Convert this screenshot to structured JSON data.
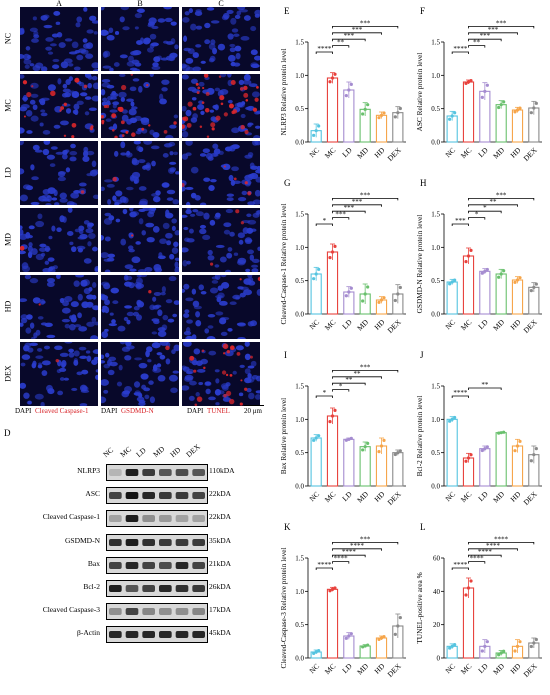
{
  "micro": {
    "col_labels": [
      "A",
      "B",
      "C"
    ],
    "row_labels": [
      "NC",
      "MC",
      "LD",
      "MD",
      "HD",
      "DEX"
    ],
    "red_density": [
      [
        0,
        0,
        0
      ],
      [
        0.25,
        0.35,
        0.6
      ],
      [
        0.02,
        0.02,
        0.08
      ],
      [
        0.01,
        0.02,
        0.05
      ],
      [
        0.01,
        0.01,
        0.03
      ],
      [
        0.02,
        0.02,
        0.35
      ]
    ],
    "legend": [
      {
        "dapi": "DAPI",
        "marker": "Cleaved Caspase-1"
      },
      {
        "dapi": "DAPI",
        "marker": "GSDMD-N"
      },
      {
        "dapi": "DAPI",
        "marker": "TUNEL"
      }
    ],
    "scale_bar": "20 μm",
    "colors": {
      "dapi": "#2a3ccc",
      "marker": "#d9262b",
      "background": "#08082a"
    }
  },
  "western": {
    "panel": "D",
    "lanes": [
      "NC",
      "MC",
      "LD",
      "MD",
      "HD",
      "DEX"
    ],
    "proteins": [
      {
        "name": "NLRP3",
        "kda": "110kDA",
        "intensity": [
          0.1,
          0.9,
          0.75,
          0.6,
          0.65,
          0.6
        ]
      },
      {
        "name": "ASC",
        "kda": "22kDA",
        "intensity": [
          0.7,
          0.95,
          0.85,
          0.75,
          0.75,
          0.7
        ]
      },
      {
        "name": "Cleaved Caspase-1",
        "kda": "22kDA",
        "intensity": [
          0.2,
          0.9,
          0.3,
          0.25,
          0.2,
          0.2
        ]
      },
      {
        "name": "GSDMD-N",
        "kda": "35kDA",
        "intensity": [
          0.8,
          0.9,
          0.8,
          0.75,
          0.75,
          0.75
        ]
      },
      {
        "name": "Bax",
        "kda": "21kDA",
        "intensity": [
          0.7,
          0.85,
          0.7,
          0.65,
          0.85,
          0.7
        ]
      },
      {
        "name": "Bcl-2",
        "kda": "26kDA",
        "intensity": [
          0.9,
          0.6,
          0.7,
          0.85,
          0.8,
          0.75
        ]
      },
      {
        "name": "Cleaved Caspase-3",
        "kda": "17kDA",
        "intensity": [
          0.3,
          0.7,
          0.35,
          0.3,
          0.3,
          0.35
        ]
      },
      {
        "name": "β-Actin",
        "kda": "45kDA",
        "intensity": [
          0.85,
          0.85,
          0.85,
          0.85,
          0.85,
          0.85
        ]
      }
    ]
  },
  "group_colors": [
    "#55c4e0",
    "#e8423d",
    "#a58cd0",
    "#69c06d",
    "#f6a54a",
    "#8a8a8a"
  ],
  "chart_data": [
    {
      "panel": "E",
      "type": "bar",
      "ylabel": "NLRP3 Relative protein level",
      "categories": [
        "NC",
        "MC",
        "LD",
        "MD",
        "HD",
        "DEX"
      ],
      "values": [
        0.17,
        0.96,
        0.78,
        0.49,
        0.4,
        0.44
      ],
      "errors": [
        0.1,
        0.08,
        0.12,
        0.1,
        0.05,
        0.09
      ],
      "ylim": [
        0,
        1.5
      ],
      "yticks": [
        "0.0",
        "0.5",
        "1.0",
        "1.5"
      ],
      "sig": [
        {
          "from": 0,
          "to": 1,
          "label": "****"
        },
        {
          "from": 1,
          "to": 2,
          "label": "**"
        },
        {
          "from": 1,
          "to": 3,
          "label": "***"
        },
        {
          "from": 1,
          "to": 4,
          "label": "***"
        },
        {
          "from": 1,
          "to": 5,
          "label": "***"
        }
      ]
    },
    {
      "panel": "F",
      "type": "bar",
      "ylabel": "ASC Relative protein level",
      "categories": [
        "NC",
        "MC",
        "LD",
        "MD",
        "HD",
        "DEX"
      ],
      "values": [
        0.39,
        0.9,
        0.76,
        0.56,
        0.48,
        0.51
      ],
      "errors": [
        0.07,
        0.03,
        0.13,
        0.06,
        0.04,
        0.1
      ],
      "ylim": [
        0,
        1.5
      ],
      "yticks": [
        "0.0",
        "0.5",
        "1.0",
        "1.5"
      ],
      "sig": [
        {
          "from": 0,
          "to": 1,
          "label": "****"
        },
        {
          "from": 1,
          "to": 2,
          "label": "**"
        },
        {
          "from": 1,
          "to": 3,
          "label": "***"
        },
        {
          "from": 1,
          "to": 4,
          "label": "***"
        },
        {
          "from": 1,
          "to": 5,
          "label": "***"
        }
      ]
    },
    {
      "panel": "G",
      "type": "bar",
      "ylabel": "Cleaved-Caspase-1 Relative protein level",
      "categories": [
        "NC",
        "MC",
        "LD",
        "MD",
        "HD",
        "DEX"
      ],
      "values": [
        0.6,
        0.93,
        0.33,
        0.3,
        0.21,
        0.3
      ],
      "errors": [
        0.1,
        0.12,
        0.08,
        0.15,
        0.05,
        0.14
      ],
      "ylim": [
        0,
        1.5
      ],
      "yticks": [
        "0.0",
        "0.5",
        "1.0",
        "1.5"
      ],
      "sig": [
        {
          "from": 0,
          "to": 1,
          "label": "*"
        },
        {
          "from": 1,
          "to": 2,
          "label": "***"
        },
        {
          "from": 1,
          "to": 3,
          "label": "***"
        },
        {
          "from": 1,
          "to": 4,
          "label": "***"
        },
        {
          "from": 1,
          "to": 5,
          "label": "***"
        }
      ]
    },
    {
      "panel": "H",
      "type": "bar",
      "ylabel": "GSDMD-N Relative protein level",
      "categories": [
        "NC",
        "MC",
        "LD",
        "MD",
        "HD",
        "DEX"
      ],
      "values": [
        0.48,
        0.87,
        0.64,
        0.6,
        0.51,
        0.4
      ],
      "errors": [
        0.04,
        0.12,
        0.04,
        0.07,
        0.05,
        0.07
      ],
      "ylim": [
        0,
        1.5
      ],
      "yticks": [
        "0.0",
        "0.5",
        "1.0",
        "1.5"
      ],
      "sig": [
        {
          "from": 0,
          "to": 1,
          "label": "***"
        },
        {
          "from": 1,
          "to": 2,
          "label": "*"
        },
        {
          "from": 1,
          "to": 3,
          "label": "*"
        },
        {
          "from": 1,
          "to": 4,
          "label": "**"
        },
        {
          "from": 1,
          "to": 5,
          "label": "***"
        }
      ]
    },
    {
      "panel": "I",
      "type": "bar",
      "ylabel": "Bax Relative protein level",
      "categories": [
        "NC",
        "MC",
        "LD",
        "MD",
        "HD",
        "DEX"
      ],
      "values": [
        0.72,
        1.05,
        0.7,
        0.59,
        0.6,
        0.5
      ],
      "errors": [
        0.05,
        0.12,
        0.02,
        0.07,
        0.12,
        0.04
      ],
      "ylim": [
        0,
        1.5
      ],
      "yticks": [
        "0.0",
        "0.5",
        "1.0",
        "1.5"
      ],
      "sig": [
        {
          "from": 0,
          "to": 1,
          "label": "*"
        },
        {
          "from": 1,
          "to": 2,
          "label": "*"
        },
        {
          "from": 1,
          "to": 3,
          "label": "**"
        },
        {
          "from": 1,
          "to": 4,
          "label": "**"
        },
        {
          "from": 1,
          "to": 5,
          "label": "***"
        }
      ]
    },
    {
      "panel": "J",
      "type": "bar",
      "ylabel": "Bcl-2 Relative protein level",
      "categories": [
        "NC",
        "MC",
        "LD",
        "MD",
        "HD",
        "DEX"
      ],
      "values": [
        1.0,
        0.42,
        0.56,
        0.8,
        0.6,
        0.47
      ],
      "errors": [
        0.04,
        0.07,
        0.04,
        0.01,
        0.1,
        0.13
      ],
      "ylim": [
        0,
        1.5
      ],
      "yticks": [
        "0.0",
        "0.5",
        "1.0",
        "1.5"
      ],
      "sig": [
        {
          "from": 0,
          "to": 1,
          "label": "****"
        },
        {
          "from": 1,
          "to": 3,
          "label": "**"
        }
      ]
    },
    {
      "panel": "K",
      "type": "bar",
      "ylabel": "Cleaved-Caspase-3 Relative protein level",
      "categories": [
        "NC",
        "MC",
        "LD",
        "MD",
        "HD",
        "DEX"
      ],
      "values": [
        0.09,
        1.03,
        0.33,
        0.18,
        0.3,
        0.48
      ],
      "errors": [
        0.03,
        0.03,
        0.05,
        0.02,
        0.03,
        0.18
      ],
      "ylim": [
        0,
        1.5
      ],
      "yticks": [
        "0.0",
        "0.5",
        "1.0",
        "1.5"
      ],
      "sig": [
        {
          "from": 0,
          "to": 1,
          "label": "****"
        },
        {
          "from": 1,
          "to": 2,
          "label": "****"
        },
        {
          "from": 1,
          "to": 3,
          "label": "****"
        },
        {
          "from": 1,
          "to": 4,
          "label": "****"
        },
        {
          "from": 1,
          "to": 5,
          "label": "***"
        }
      ]
    },
    {
      "panel": "L",
      "type": "bar",
      "ylabel": "TUNEL-positive area %",
      "categories": [
        "NC",
        "MC",
        "LD",
        "MD",
        "HD",
        "DEX"
      ],
      "values": [
        7,
        42,
        7,
        3,
        7,
        9
      ],
      "errors": [
        1.5,
        6,
        4,
        1.5,
        4,
        3
      ],
      "ylim": [
        0,
        60
      ],
      "yticks": [
        "0",
        "20",
        "40",
        "60"
      ],
      "sig": [
        {
          "from": 0,
          "to": 1,
          "label": "****"
        },
        {
          "from": 1,
          "to": 2,
          "label": "****"
        },
        {
          "from": 1,
          "to": 3,
          "label": "****"
        },
        {
          "from": 1,
          "to": 4,
          "label": "****"
        },
        {
          "from": 1,
          "to": 5,
          "label": "****"
        }
      ]
    }
  ]
}
